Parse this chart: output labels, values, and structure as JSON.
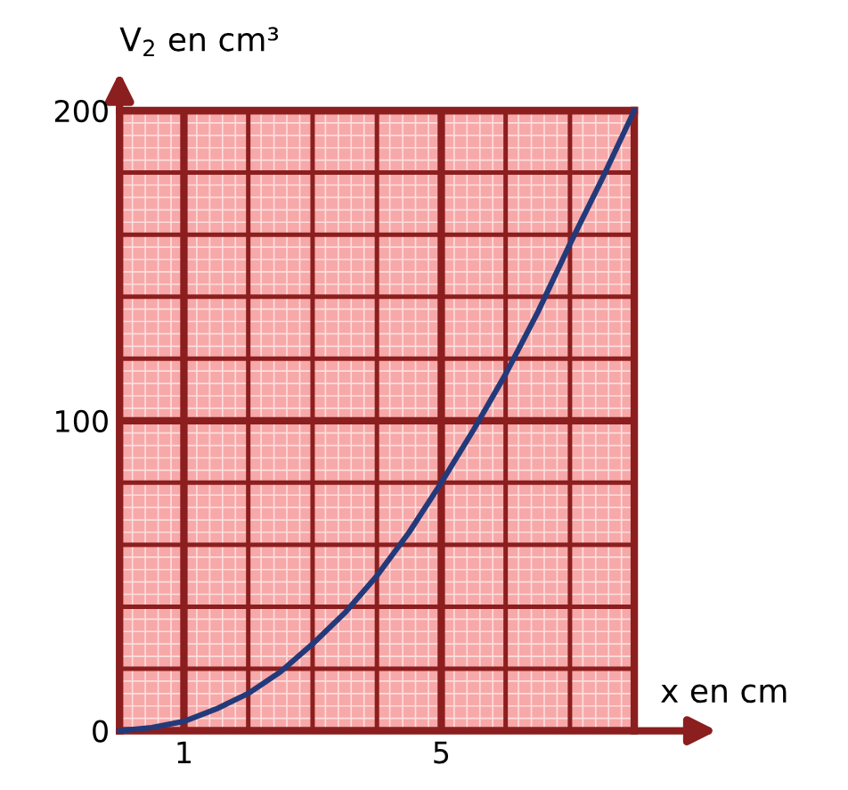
{
  "chart_data": {
    "type": "line",
    "xlabel": "x en cm",
    "ylabel": "V$_{2}$ en cm³",
    "series": [
      {
        "color": "#233a7a",
        "x": [
          0,
          0.5,
          1,
          1.5,
          2,
          2.5,
          3,
          3.5,
          4,
          4.5,
          5,
          5.5,
          6,
          6.5,
          7,
          7.5,
          8
        ],
        "values": [
          0,
          1,
          3,
          7,
          12,
          19,
          28,
          38,
          50,
          64,
          80,
          97,
          115,
          135,
          157,
          178,
          200
        ]
      }
    ],
    "xlim": [
      0,
      8
    ],
    "ylim": [
      0,
      200
    ],
    "xticks": [
      {
        "value": 0,
        "label": null
      },
      1,
      {
        "value": 2,
        "label": null
      },
      {
        "value": 3,
        "label": null
      },
      {
        "value": 4,
        "label": null
      },
      5,
      {
        "value": 6,
        "label": null
      },
      {
        "value": 7,
        "label": null
      },
      {
        "value": 8,
        "label": null
      }
    ],
    "yticks": [
      0,
      {
        "value": 20,
        "label": null
      },
      {
        "value": 40,
        "label": null
      },
      {
        "value": 60,
        "label": null
      },
      {
        "value": 80,
        "label": null
      },
      100,
      {
        "value": 120,
        "label": null
      },
      {
        "value": 140,
        "label": null
      },
      {
        "value": 160,
        "label": null
      },
      {
        "value": 180,
        "label": null
      },
      200
    ],
    "grid": true
  }
}
